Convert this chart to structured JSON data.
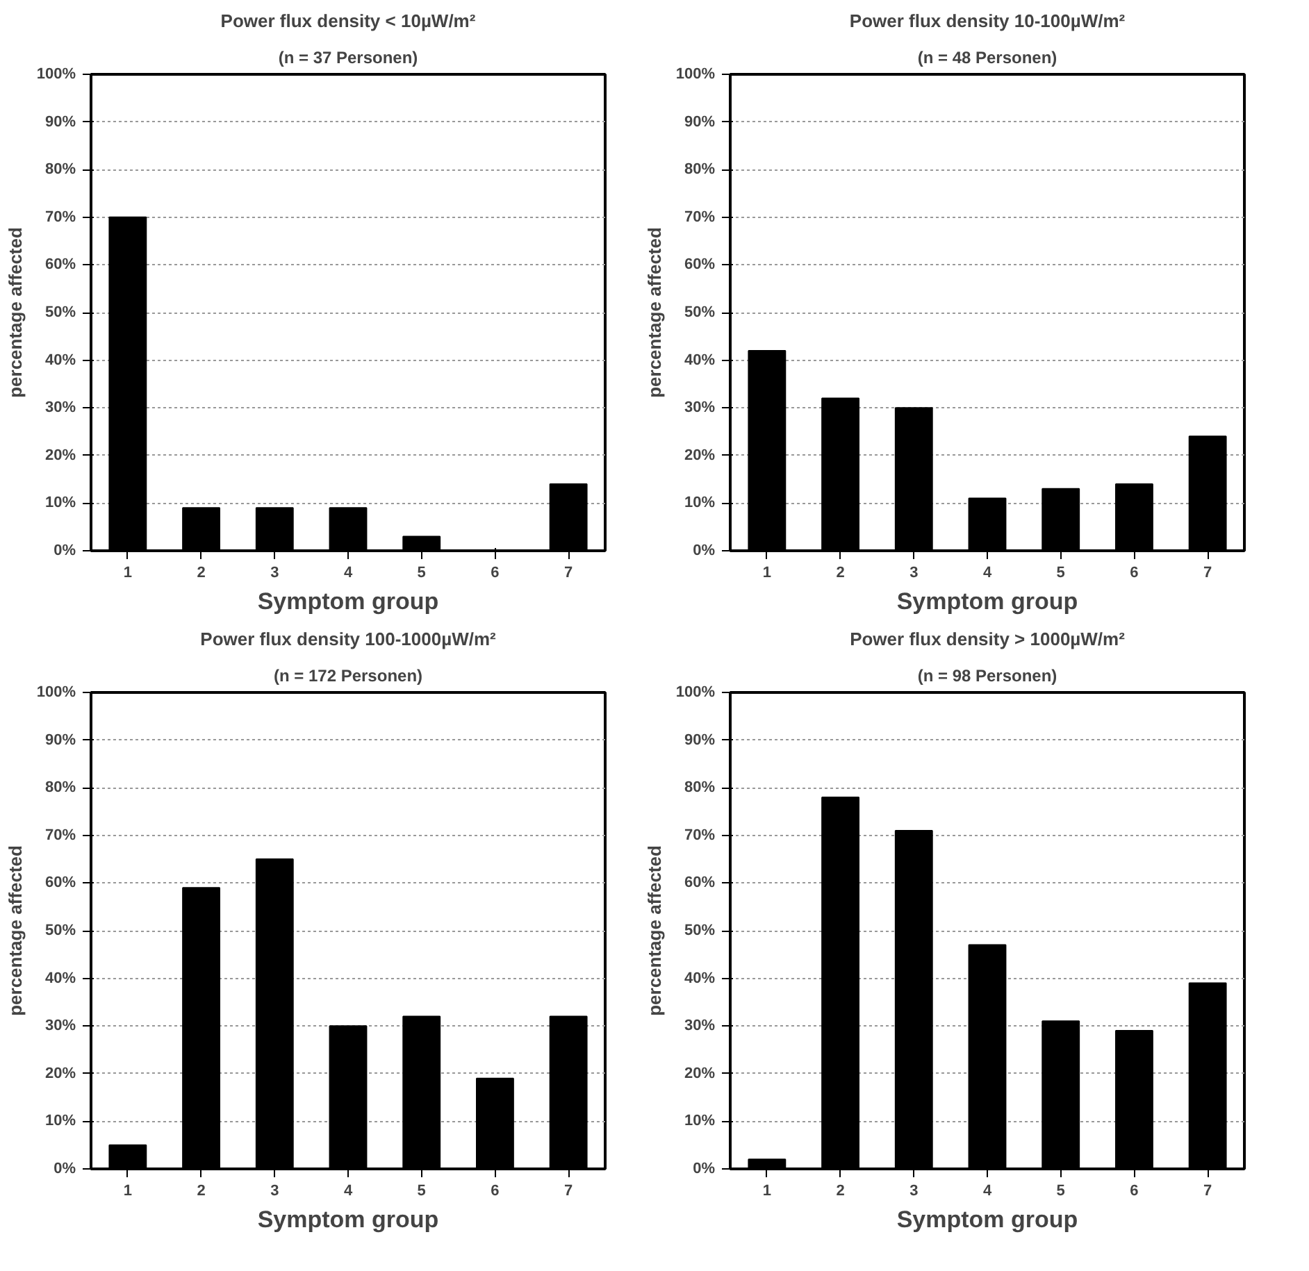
{
  "chart_data": [
    {
      "type": "bar",
      "title": "Power flux density < 10µW/m²",
      "subtitle": "(n = 37 Personen)",
      "xlabel": "Symptom group",
      "ylabel": "percentage affected",
      "categories": [
        "1",
        "2",
        "3",
        "4",
        "5",
        "6",
        "7"
      ],
      "values": [
        70,
        9,
        9,
        9,
        3,
        0,
        14
      ],
      "color": "#000000",
      "ylim": [
        0,
        100
      ],
      "yticks": [
        {
          "value": 0,
          "label": "0%"
        },
        {
          "value": 10,
          "label": "10%"
        },
        {
          "value": 20,
          "label": "20%"
        },
        {
          "value": 30,
          "label": "30%"
        },
        {
          "value": 40,
          "label": "40%"
        },
        {
          "value": 50,
          "label": "50%"
        },
        {
          "value": 60,
          "label": "60%"
        },
        {
          "value": 70,
          "label": "70%"
        },
        {
          "value": 80,
          "label": "80%"
        },
        {
          "value": 90,
          "label": "90%"
        },
        {
          "value": 100,
          "label": "100%"
        }
      ],
      "grid": "y"
    },
    {
      "type": "bar",
      "title": "Power flux density 10-100µW/m²",
      "subtitle": "(n = 48 Personen)",
      "xlabel": "Symptom group",
      "ylabel": "percentage affected",
      "categories": [
        "1",
        "2",
        "3",
        "4",
        "5",
        "6",
        "7"
      ],
      "values": [
        42,
        32,
        30,
        11,
        13,
        14,
        24
      ],
      "color": "#000000",
      "ylim": [
        0,
        100
      ],
      "yticks": [
        {
          "value": 0,
          "label": "0%"
        },
        {
          "value": 10,
          "label": "10%"
        },
        {
          "value": 20,
          "label": "20%"
        },
        {
          "value": 30,
          "label": "30%"
        },
        {
          "value": 40,
          "label": "40%"
        },
        {
          "value": 50,
          "label": "50%"
        },
        {
          "value": 60,
          "label": "60%"
        },
        {
          "value": 70,
          "label": "70%"
        },
        {
          "value": 80,
          "label": "80%"
        },
        {
          "value": 90,
          "label": "90%"
        },
        {
          "value": 100,
          "label": "100%"
        }
      ],
      "grid": "y"
    },
    {
      "type": "bar",
      "title": "Power flux density 100-1000µW/m²",
      "subtitle": "(n = 172 Personen)",
      "xlabel": "Symptom group",
      "ylabel": "percentage affected",
      "categories": [
        "1",
        "2",
        "3",
        "4",
        "5",
        "6",
        "7"
      ],
      "values": [
        5,
        59,
        65,
        30,
        32,
        19,
        32
      ],
      "color": "#000000",
      "ylim": [
        0,
        100
      ],
      "yticks": [
        {
          "value": 0,
          "label": "0%"
        },
        {
          "value": 10,
          "label": "10%"
        },
        {
          "value": 20,
          "label": "20%"
        },
        {
          "value": 30,
          "label": "30%"
        },
        {
          "value": 40,
          "label": "40%"
        },
        {
          "value": 50,
          "label": "50%"
        },
        {
          "value": 60,
          "label": "60%"
        },
        {
          "value": 70,
          "label": "70%"
        },
        {
          "value": 80,
          "label": "80%"
        },
        {
          "value": 90,
          "label": "90%"
        },
        {
          "value": 100,
          "label": "100%"
        }
      ],
      "grid": "y"
    },
    {
      "type": "bar",
      "title": "Power flux density > 1000µW/m²",
      "subtitle": "(n = 98 Personen)",
      "xlabel": "Symptom group",
      "ylabel": "percentage affected",
      "categories": [
        "1",
        "2",
        "3",
        "4",
        "5",
        "6",
        "7"
      ],
      "values": [
        2,
        78,
        71,
        47,
        31,
        29,
        39
      ],
      "color": "#000000",
      "ylim": [
        0,
        100
      ],
      "yticks": [
        {
          "value": 0,
          "label": "0%"
        },
        {
          "value": 10,
          "label": "10%"
        },
        {
          "value": 20,
          "label": "20%"
        },
        {
          "value": 30,
          "label": "30%"
        },
        {
          "value": 40,
          "label": "40%"
        },
        {
          "value": 50,
          "label": "50%"
        },
        {
          "value": 60,
          "label": "60%"
        },
        {
          "value": 70,
          "label": "70%"
        },
        {
          "value": 80,
          "label": "80%"
        },
        {
          "value": 90,
          "label": "90%"
        },
        {
          "value": 100,
          "label": "100%"
        }
      ],
      "grid": "y"
    }
  ]
}
